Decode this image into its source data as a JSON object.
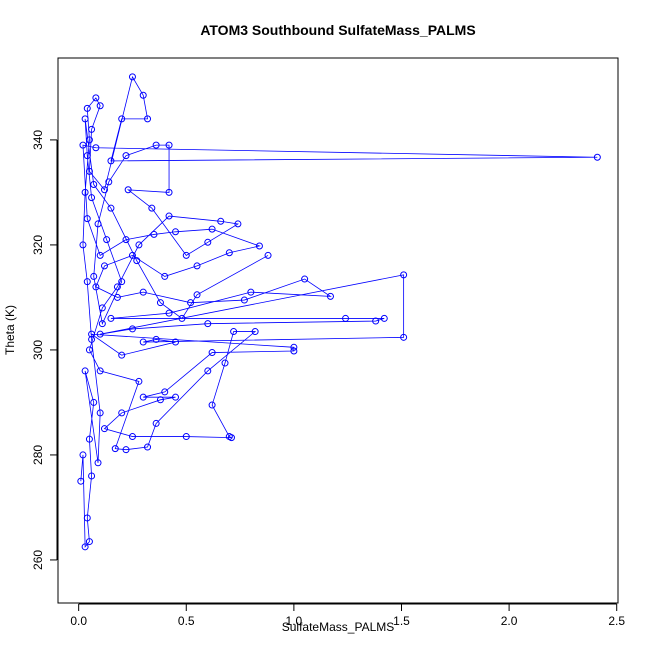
{
  "chart_data": {
    "type": "line",
    "title": "ATOM3 Southbound SulfateMass_PALMS",
    "x_label": "SulfateMass_PALMS",
    "y_label": "Theta (K)",
    "color": "#0000ff",
    "markers": true,
    "xlim": [
      -0.096,
      2.506
    ],
    "ylim": [
      251.8,
      355.6
    ],
    "xticks": [
      {
        "value": 0,
        "label": "0.0"
      },
      0.5,
      {
        "value": 1,
        "label": "1.0"
      },
      1.5,
      {
        "value": 2,
        "label": "2.0"
      },
      2.5
    ],
    "yticks": [
      260,
      280,
      300,
      320,
      340
    ],
    "x": [
      0.01,
      0.02,
      0.03,
      0.05,
      0.04,
      0.06,
      0.05,
      0.07,
      0.03,
      0.09,
      0.1,
      0.06,
      0.04,
      0.02,
      0.03,
      0.05,
      0.04,
      0.08,
      0.1,
      0.06,
      0.05,
      0.12,
      0.25,
      0.3,
      0.32,
      0.2,
      0.15,
      2.41,
      0.08,
      0.02,
      0.04,
      0.1,
      0.22,
      0.35,
      0.45,
      0.62,
      0.84,
      0.7,
      0.55,
      0.4,
      0.25,
      0.12,
      0.08,
      0.18,
      0.3,
      0.52,
      0.77,
      1.05,
      1.17,
      0.8,
      0.42,
      0.15,
      1.24,
      1.42,
      1.38,
      0.6,
      0.25,
      0.1,
      1.51,
      1.51,
      0.3,
      0.36,
      0.45,
      0.2,
      0.06,
      1.0,
      1.0,
      0.62,
      0.4,
      0.3,
      0.45,
      0.38,
      0.2,
      0.12,
      0.25,
      0.5,
      0.71,
      0.7,
      0.62,
      0.68,
      0.72,
      0.82,
      0.6,
      0.36,
      0.32,
      0.22,
      0.17,
      0.28,
      0.1,
      0.05,
      0.11,
      0.18,
      0.28,
      0.42,
      0.66,
      0.74,
      0.6,
      0.5,
      0.34,
      0.23,
      0.42,
      0.42,
      0.36,
      0.22,
      0.14,
      0.09,
      0.07,
      0.11,
      0.2,
      0.13,
      0.06,
      0.04,
      0.03,
      0.07,
      0.15,
      0.27,
      0.38,
      0.48,
      0.55,
      0.88
    ],
    "values": [
      275,
      280,
      262.5,
      263.5,
      268,
      276,
      283,
      290,
      296,
      278.5,
      288,
      302,
      313,
      320,
      330,
      340,
      346,
      348,
      346.5,
      342,
      334,
      330.5,
      352,
      348.5,
      344,
      344,
      336,
      336.7,
      338.5,
      339,
      325,
      318,
      321,
      322,
      322.5,
      323,
      319.8,
      318.5,
      316,
      314,
      318,
      316,
      312,
      310,
      311,
      309,
      309.5,
      313.5,
      310.2,
      311,
      307,
      306,
      306,
      306,
      305.5,
      305,
      304,
      303,
      314.3,
      302.4,
      301.5,
      302,
      301.5,
      299,
      303,
      300.5,
      299.8,
      299.5,
      292,
      291,
      291,
      290.5,
      288,
      285,
      283.5,
      283.5,
      283.3,
      283.5,
      289.5,
      297.5,
      303.5,
      303.5,
      296,
      286,
      281.5,
      281,
      281.2,
      294,
      296,
      300,
      308,
      312,
      320,
      325.5,
      324.5,
      324,
      320.5,
      318,
      327,
      330.5,
      330,
      339,
      339,
      337,
      332,
      324,
      314,
      305,
      313,
      321,
      329,
      337,
      344,
      331.5,
      327,
      317,
      309,
      306,
      310.5,
      318
    ]
  }
}
